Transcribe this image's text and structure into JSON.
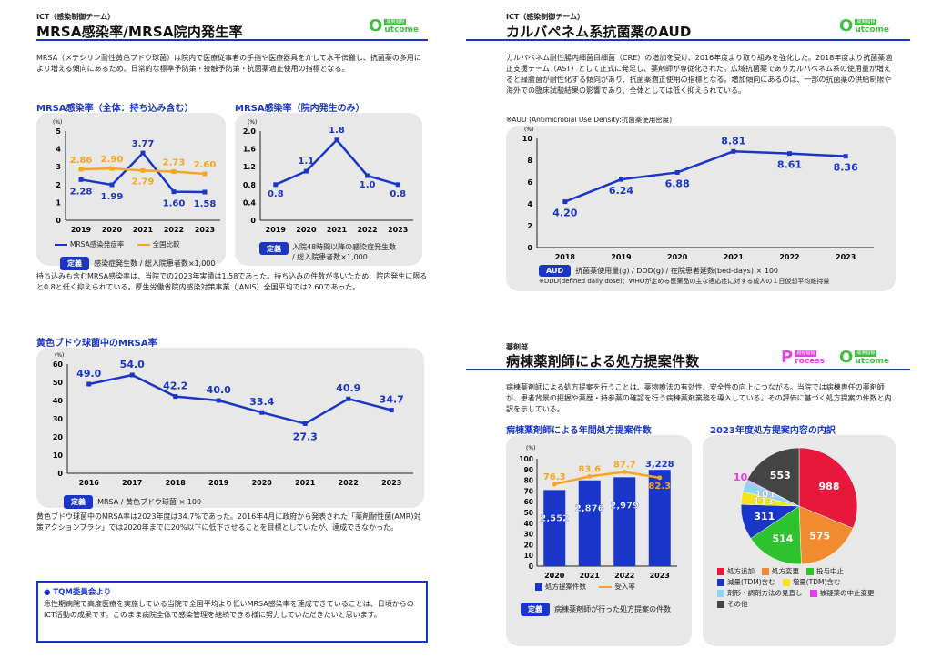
{
  "left": {
    "team": "ICT（感染制御チーム）",
    "title": "MRSA感染率/MRSA院内発生率",
    "logo_tiny": "成果指標",
    "logo_big": "O",
    "logo_word": "utcome",
    "intro": "MRSA（メチシリン耐性黄色ブドウ球菌）は院内で医療従事者の手指や医療器具を介して水平伝搬し、抗菌薬の多用により増える傾向にあるため、日常的な標準予防策・接触予防策・抗菌薬適正使用の指標となる。",
    "chart1_title": "MRSA感染率（全体：持ち込み含む）",
    "chart2_title": "MRSA感染率（院内発生のみ）",
    "unit_pct": "(%)",
    "chart1_legend_a": "MRSA感染発症率",
    "chart1_legend_b": "全国比較",
    "def_label": "定義",
    "chart1_def": "感染症発生数 / 総入院患者数×1,000",
    "chart2_def_1": "入院48時間以降の感染症発生数",
    "chart2_def_2": "/ 総入院患者数×1,000",
    "summary": "持ち込みも含むMRSA感染率は、当院での2023年実績は1.58であった。持ち込みの件数が多いたため、院内発生に限ると0.8と低く抑えられている。厚生労働省院内感染対策事業（JANIS）全国平均では2.60であった。",
    "chart3_title": "黄色ブドウ球菌中のMRSA率",
    "chart3_def": "MRSA / 黄色ブドウ球菌 × 100",
    "chart3_text": "黄色ブドウ球菌中のMRSA率は2023年度は34.7%であった。2016年4月に政府から発表された「薬剤耐性菌(AMR)対策アクションプラン」では2020年までに20%以下に低下させることを目標としていたが、達成できなかった。",
    "tqm_title": "● TQM委員会より",
    "tqm_text": "急性期病院で高度医療を実施している当院で全国平均より低いMRSA感染率を達成できていることは、日頃からのICT活動の成果です。このまま病院全体で感染管理を継続できる様に努力していただきたいと思います。"
  },
  "right": {
    "team": "ICT（感染制御チーム）",
    "title": "カルバペネム系抗菌薬のAUD",
    "logo_tiny": "成果指標",
    "logo_big": "O",
    "logo_word": "utcome",
    "intro": "カルバペネム耐性腸内細菌目細菌（CRE）の増加を受け、2016年度より取り組みを強化した。2018年度より抗菌薬適正支援チーム（AST）として正式に発足し、薬剤師が専従化された。広域抗菌薬でありカルバペネム系の使用量が増えると緑膿菌が耐性化する傾向があり、抗菌薬適正使用の指標となる。増加傾向にあるのは、一部の抗菌薬の供給制限や海外での臨床試験結果の影響であり、全体としては低く抑えられている。",
    "aud_note": "※AUD (Antimicrobial Use Density:抗菌薬使用密度)",
    "aud_label": "AUD",
    "aud_def": "抗菌薬使用量(g) / DDD(g) / 在院患者延数(bed-days) × 100",
    "ddd_note": "※DDD(defined daily dose)：WHOが定める医薬品の主な適応症に対する成人の１日仮想平均維持量",
    "dept": "薬剤部",
    "title2": "病棟薬剤師による処方提案件数",
    "proc_tiny": "過程指標",
    "proc_big": "P",
    "proc_word": "rocess",
    "intro2": "病棟薬剤師による処方提案を行うことは、薬物療法の有効性、安全性の向上につながる。当院では病棟専任の薬剤師が、患者背景の把握や薬歴・持参薬の確認を行う病棟薬剤業務を導入している。その評価に基づく処方提案の件数と内訳を示している。",
    "chart5_title": "病棟薬剤師による年間処方提案件数",
    "chart6_title": "2023年度処方提案内容の内訳",
    "chart5_legend_a": "処方提案件数",
    "chart5_legend_b": "受入率",
    "def_label": "定義",
    "chart5_def": "病棟薬剤師が行った処方提案の件数",
    "pie_legend": [
      "処方追加",
      "処方変更",
      "投与中止",
      "減量(TDM)含む",
      "増量(TDM)含む",
      "剤形・調剤方法の見直し",
      "被疑薬の中止変更",
      "その他"
    ]
  },
  "chart_data": [
    {
      "type": "line",
      "title": "MRSA感染率（全体：持ち込み含む）",
      "x": [
        "2019",
        "2020",
        "2021",
        "2022",
        "2023"
      ],
      "ylim": [
        0,
        5
      ],
      "yticks": [
        0,
        1,
        2,
        3,
        4,
        5
      ],
      "series": [
        {
          "name": "MRSA感染発症率",
          "values": [
            2.28,
            1.99,
            3.77,
            1.6,
            1.58
          ],
          "color": "#1a36c8"
        },
        {
          "name": "全国比較",
          "values": [
            2.86,
            2.9,
            2.79,
            2.73,
            2.6
          ],
          "color": "#f5a623"
        }
      ]
    },
    {
      "type": "line",
      "title": "MRSA感染率（院内発生のみ）",
      "x": [
        "2019",
        "2020",
        "2021",
        "2022",
        "2023"
      ],
      "ylim": [
        0,
        2.0
      ],
      "yticks": [
        "0",
        "0.4",
        "0.8",
        "1.2",
        "1.6",
        "2.0"
      ],
      "series": [
        {
          "values": [
            0.8,
            1.1,
            1.8,
            1.0,
            0.8
          ],
          "color": "#1a36c8"
        }
      ]
    },
    {
      "type": "line",
      "title": "黄色ブドウ球菌中のMRSA率",
      "x": [
        "2016",
        "2017",
        "2018",
        "2019",
        "2020",
        "2021",
        "2022",
        "2023"
      ],
      "ylim": [
        0,
        60
      ],
      "yticks": [
        0,
        10,
        20,
        30,
        40,
        50,
        60
      ],
      "series": [
        {
          "values": [
            49.0,
            54.0,
            42.2,
            40.0,
            33.4,
            27.3,
            40.9,
            34.7
          ],
          "color": "#1a36c8"
        }
      ]
    },
    {
      "type": "line",
      "title": "カルバペネム系抗菌薬のAUD",
      "x": [
        "2018",
        "2019",
        "2020",
        "2021",
        "2022",
        "2023"
      ],
      "ylim": [
        0,
        10
      ],
      "yticks": [
        0,
        2,
        4,
        6,
        8,
        10
      ],
      "series": [
        {
          "values": [
            4.2,
            6.24,
            6.88,
            8.81,
            8.61,
            8.36
          ],
          "color": "#1a36c8"
        }
      ]
    },
    {
      "type": "bar",
      "title": "病棟薬剤師による年間処方提案件数",
      "categories": [
        "2020",
        "2021",
        "2022",
        "2023"
      ],
      "ylim": [
        0,
        100
      ],
      "yticks": [
        0,
        10,
        20,
        30,
        40,
        50,
        60,
        70,
        80,
        90,
        100
      ],
      "series": [
        {
          "name": "処方提案件数",
          "values": [
            2552,
            2876,
            2979,
            3228
          ],
          "labels": [
            "2,552",
            "2,876",
            "2,979",
            "3,228"
          ],
          "color": "#1a36c8"
        },
        {
          "name": "受入率",
          "values": [
            76.3,
            83.6,
            87.7,
            82.3
          ],
          "color": "#f5a623"
        }
      ]
    },
    {
      "type": "pie",
      "title": "2023年度処方提案内容の内訳",
      "slices": [
        {
          "label": "処方追加",
          "value": 988,
          "color": "#e8183c"
        },
        {
          "label": "処方変更",
          "value": 575,
          "color": "#f28a30"
        },
        {
          "label": "投与中止",
          "value": 514,
          "color": "#2ec22e"
        },
        {
          "label": "減量(TDM)含む",
          "value": 311,
          "color": "#1a36c8"
        },
        {
          "label": "増量(TDM)含む",
          "value": 113,
          "color": "#f5e41a"
        },
        {
          "label": "剤形・調剤方法の見直し",
          "value": 101,
          "color": "#8fd3f5"
        },
        {
          "label": "被疑薬の中止変更",
          "value": 10,
          "color": "#e63ce6"
        },
        {
          "label": "その他",
          "value": 553,
          "color": "#444444"
        }
      ]
    }
  ]
}
